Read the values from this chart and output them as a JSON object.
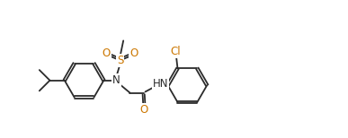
{
  "bg_color": "#ffffff",
  "line_color": "#2b2b2b",
  "atom_colors": {
    "N": "#2b2b2b",
    "O": "#cc7700",
    "S": "#cc7700",
    "Cl": "#cc7700"
  },
  "figsize": [
    3.87,
    1.54
  ],
  "dpi": 100
}
